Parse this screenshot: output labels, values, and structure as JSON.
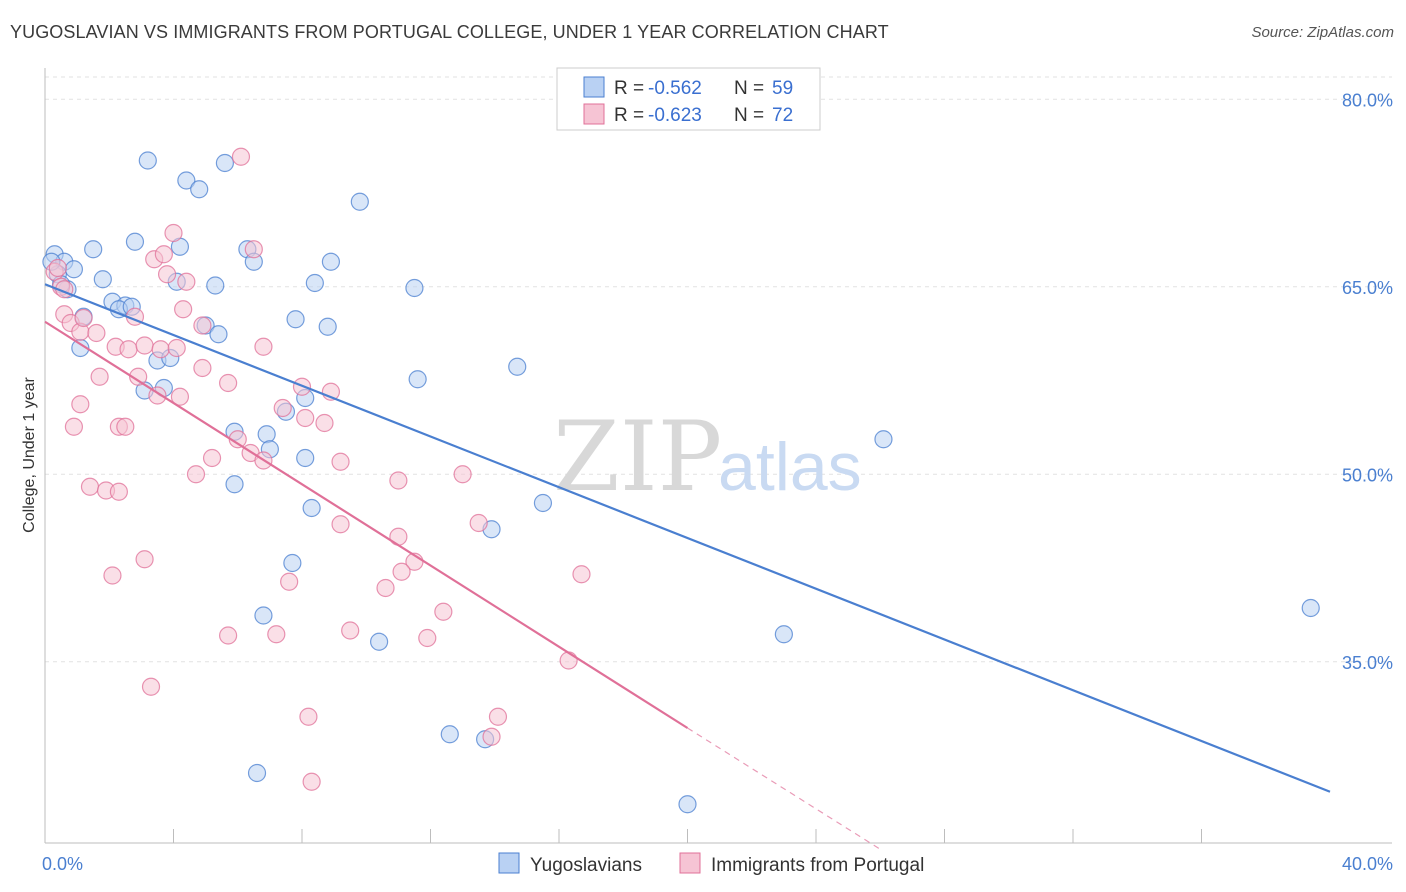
{
  "header": {
    "title": "YUGOSLAVIAN VS IMMIGRANTS FROM PORTUGAL COLLEGE, UNDER 1 YEAR CORRELATION CHART",
    "source": "Source: ZipAtlas.com"
  },
  "watermark": {
    "zip": "ZIP",
    "atlas": "atlas"
  },
  "colors": {
    "blue": "#4a7fd0",
    "blue_fill": "#b9d1f3",
    "pink": "#e07098",
    "pink_fill": "#f6c4d4",
    "grid": "#e2e2e2",
    "axis_label": "#4a7fd0"
  },
  "legend": {
    "rows": [
      {
        "r_label": "R = ",
        "r_value": "-0.562",
        "n_label": "N = ",
        "n_value": "59"
      },
      {
        "r_label": "R = ",
        "r_value": "-0.623",
        "n_label": "N = ",
        "n_value": "72"
      }
    ]
  },
  "chart_data": {
    "type": "scatter",
    "title": "YUGOSLAVIAN VS IMMIGRANTS FROM PORTUGAL COLLEGE, UNDER 1 YEAR CORRELATION CHART",
    "xlabel": "",
    "ylabel": "College, Under 1 year",
    "xlim": [
      0,
      40
    ],
    "ylim": [
      20.5,
      82.5
    ],
    "x_tick_labels": [
      {
        "value": 0,
        "label": "0.0%"
      },
      {
        "value": 40,
        "label": "40.0%"
      }
    ],
    "y_tick_labels": [
      {
        "value": 80,
        "label": "80.0%"
      },
      {
        "value": 65,
        "label": "65.0%"
      },
      {
        "value": 50,
        "label": "50.0%"
      },
      {
        "value": 35,
        "label": "35.0%"
      }
    ],
    "y_gridlines": [
      80,
      65,
      50,
      35
    ],
    "x_minor_ticks": [
      4,
      8,
      12,
      16,
      20,
      24,
      28,
      32,
      36
    ],
    "grid": true,
    "legend_position": "top-center",
    "series": [
      {
        "name": "Yugoslavians",
        "color": "#4a7fd0",
        "trend": {
          "x": [
            0,
            40
          ],
          "y": [
            65.2,
            24.6
          ]
        },
        "points": [
          [
            0.3,
            67.6
          ],
          [
            0.6,
            67.0
          ],
          [
            0.4,
            66.0
          ],
          [
            0.9,
            66.4
          ],
          [
            0.7,
            64.8
          ],
          [
            1.5,
            68.0
          ],
          [
            1.8,
            65.6
          ],
          [
            1.2,
            62.6
          ],
          [
            1.1,
            60.1
          ],
          [
            2.1,
            63.8
          ],
          [
            2.5,
            63.5
          ],
          [
            2.3,
            63.2
          ],
          [
            3.2,
            75.1
          ],
          [
            2.8,
            68.6
          ],
          [
            4.4,
            73.5
          ],
          [
            4.8,
            72.8
          ],
          [
            5.6,
            74.9
          ],
          [
            4.2,
            68.2
          ],
          [
            4.1,
            65.4
          ],
          [
            5.3,
            65.1
          ],
          [
            5.0,
            61.9
          ],
          [
            5.4,
            61.2
          ],
          [
            3.5,
            59.1
          ],
          [
            3.9,
            59.3
          ],
          [
            3.1,
            56.7
          ],
          [
            3.7,
            56.9
          ],
          [
            6.3,
            68.0
          ],
          [
            6.5,
            67.0
          ],
          [
            7.8,
            62.4
          ],
          [
            8.8,
            61.8
          ],
          [
            8.9,
            67.0
          ],
          [
            8.4,
            65.3
          ],
          [
            9.8,
            71.8
          ],
          [
            11.5,
            64.9
          ],
          [
            11.6,
            57.6
          ],
          [
            14.7,
            58.6
          ],
          [
            8.1,
            56.1
          ],
          [
            7.5,
            55.0
          ],
          [
            5.9,
            53.4
          ],
          [
            6.9,
            53.2
          ],
          [
            7.0,
            52.0
          ],
          [
            8.1,
            51.3
          ],
          [
            5.9,
            49.2
          ],
          [
            8.3,
            47.3
          ],
          [
            7.7,
            42.9
          ],
          [
            6.8,
            38.7
          ],
          [
            10.4,
            36.6
          ],
          [
            15.5,
            47.7
          ],
          [
            13.9,
            45.6
          ],
          [
            26.1,
            52.8
          ],
          [
            39.4,
            39.3
          ],
          [
            23.0,
            37.2
          ],
          [
            12.6,
            29.2
          ],
          [
            13.7,
            28.8
          ],
          [
            20.0,
            23.6
          ],
          [
            6.6,
            26.1
          ],
          [
            0.2,
            67.0
          ],
          [
            0.5,
            65.2
          ],
          [
            2.7,
            63.4
          ]
        ]
      },
      {
        "name": "Immigrants from Portugal",
        "color": "#e07098",
        "trend": {
          "x": [
            0,
            20
          ],
          "y": [
            62.2,
            29.7
          ]
        },
        "trend_dashed": {
          "x": [
            20,
            26
          ],
          "y": [
            29.7,
            20.0
          ]
        },
        "points": [
          [
            0.3,
            66.2
          ],
          [
            0.5,
            65.0
          ],
          [
            0.4,
            66.5
          ],
          [
            0.6,
            64.8
          ],
          [
            0.6,
            62.8
          ],
          [
            0.8,
            62.1
          ],
          [
            1.1,
            61.4
          ],
          [
            1.6,
            61.3
          ],
          [
            1.2,
            62.5
          ],
          [
            2.8,
            62.6
          ],
          [
            2.2,
            60.2
          ],
          [
            2.6,
            60.0
          ],
          [
            3.1,
            60.3
          ],
          [
            3.6,
            60.0
          ],
          [
            4.1,
            60.1
          ],
          [
            2.9,
            57.8
          ],
          [
            1.7,
            57.8
          ],
          [
            1.1,
            55.6
          ],
          [
            0.9,
            53.8
          ],
          [
            2.3,
            53.8
          ],
          [
            2.5,
            53.8
          ],
          [
            3.5,
            56.3
          ],
          [
            4.2,
            56.2
          ],
          [
            4.9,
            58.5
          ],
          [
            5.7,
            57.3
          ],
          [
            3.4,
            67.2
          ],
          [
            3.7,
            67.6
          ],
          [
            3.8,
            66.0
          ],
          [
            4.0,
            69.3
          ],
          [
            4.4,
            65.4
          ],
          [
            6.1,
            75.4
          ],
          [
            6.5,
            68.0
          ],
          [
            4.3,
            63.2
          ],
          [
            4.9,
            61.9
          ],
          [
            6.8,
            60.2
          ],
          [
            7.4,
            55.3
          ],
          [
            8.0,
            57.0
          ],
          [
            8.9,
            56.6
          ],
          [
            8.1,
            54.5
          ],
          [
            8.7,
            54.1
          ],
          [
            6.0,
            52.8
          ],
          [
            6.4,
            51.7
          ],
          [
            6.8,
            51.1
          ],
          [
            5.2,
            51.3
          ],
          [
            4.7,
            50.0
          ],
          [
            9.2,
            51.0
          ],
          [
            9.2,
            46.0
          ],
          [
            11.0,
            49.5
          ],
          [
            13.0,
            50.0
          ],
          [
            13.5,
            46.1
          ],
          [
            11.0,
            45.0
          ],
          [
            11.5,
            43.0
          ],
          [
            11.1,
            42.2
          ],
          [
            10.6,
            40.9
          ],
          [
            12.4,
            39.0
          ],
          [
            11.9,
            36.9
          ],
          [
            9.5,
            37.5
          ],
          [
            7.6,
            41.4
          ],
          [
            7.2,
            37.2
          ],
          [
            5.7,
            37.1
          ],
          [
            3.1,
            43.2
          ],
          [
            2.1,
            41.9
          ],
          [
            1.4,
            49.0
          ],
          [
            1.9,
            48.7
          ],
          [
            2.3,
            48.6
          ],
          [
            16.7,
            42.0
          ],
          [
            16.3,
            35.1
          ],
          [
            14.1,
            30.6
          ],
          [
            13.9,
            29.0
          ],
          [
            8.3,
            25.4
          ],
          [
            8.2,
            30.6
          ],
          [
            3.3,
            33.0
          ]
        ]
      }
    ]
  },
  "bottom_legend": [
    {
      "label": "Yugoslavians"
    },
    {
      "label": "Immigrants from Portugal"
    }
  ]
}
